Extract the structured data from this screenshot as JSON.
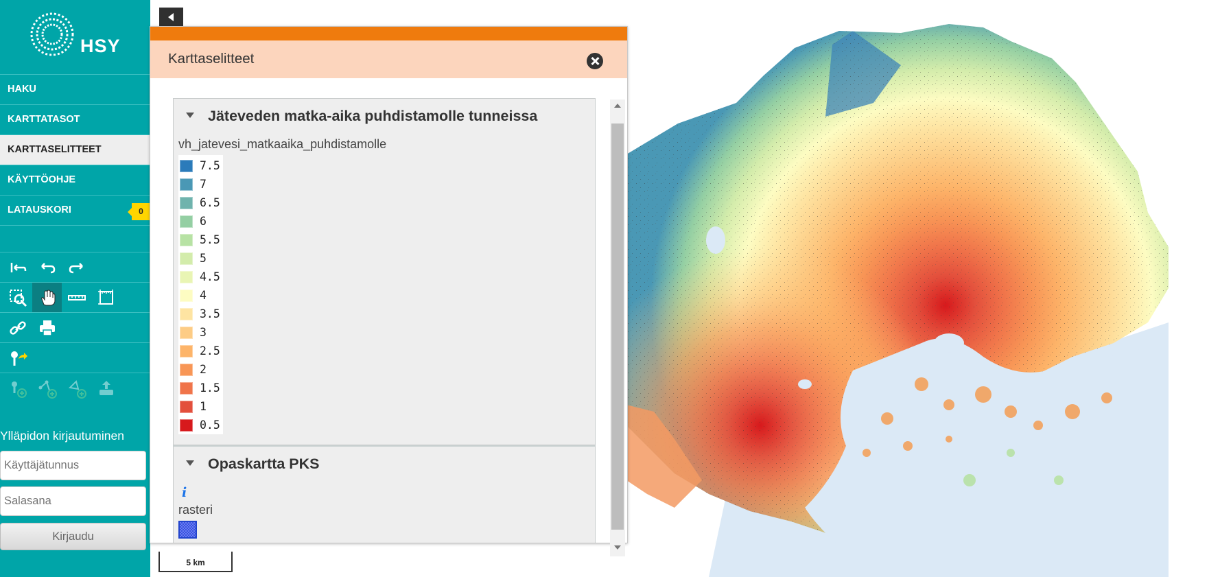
{
  "brand": {
    "name": "HSY"
  },
  "nav": {
    "items": [
      {
        "label": "HAKU"
      },
      {
        "label": "KARTTATASOT"
      },
      {
        "label": "KARTTASELITTEET"
      },
      {
        "label": "KÄYTTÖOHJE"
      },
      {
        "label": "LATAUSKORI",
        "badge": "0"
      }
    ],
    "active": "KARTTASELITTEET"
  },
  "toolbar": {
    "icons": [
      "reset-view-icon",
      "undo-icon",
      "redo-icon",
      "zoom-box-icon",
      "pan-hand-icon",
      "measure-line-icon",
      "measure-area-icon",
      "link-icon",
      "print-icon",
      "feedback-marker-icon",
      "add-point-icon",
      "add-line-icon",
      "add-area-icon",
      "import-layer-icon"
    ]
  },
  "login": {
    "title": "Ylläpidon kirjautuminen",
    "username_placeholder": "Käyttäjätunnus",
    "password_placeholder": "Salasana",
    "submit_label": "Kirjaudu"
  },
  "panel": {
    "title": "Karttaselitteet",
    "accent_color": "#ef7b0d",
    "header_color": "#fcd5bd",
    "sections": [
      {
        "title": "Jäteveden matka-aika puhdistamolle tunneissa",
        "layer_name": "vh_jatevesi_matkaaika_puhdistamolle",
        "legend": [
          {
            "label": "7.5",
            "color": "#2b7bba"
          },
          {
            "label": "7",
            "color": "#4a98b5"
          },
          {
            "label": "6.5",
            "color": "#6fb3ad"
          },
          {
            "label": "6",
            "color": "#94cfa3"
          },
          {
            "label": "5.5",
            "color": "#b7e2a4"
          },
          {
            "label": "5",
            "color": "#d3ecab"
          },
          {
            "label": "4.5",
            "color": "#e9f5b4"
          },
          {
            "label": "4",
            "color": "#fdfcc2"
          },
          {
            "label": "3.5",
            "color": "#fee4a2"
          },
          {
            "label": "3",
            "color": "#fdcc85"
          },
          {
            "label": "2.5",
            "color": "#fdb469"
          },
          {
            "label": "2",
            "color": "#f89656"
          },
          {
            "label": "1.5",
            "color": "#f0744a"
          },
          {
            "label": "1",
            "color": "#e34f3c"
          },
          {
            "label": "0.5",
            "color": "#d7191c"
          }
        ]
      },
      {
        "title": "Opaskartta PKS",
        "info_icon": "info-icon",
        "layer_name": "rasteri"
      }
    ]
  },
  "map": {
    "scale_label": "5 km",
    "sea_color": "#dbe9f6"
  }
}
